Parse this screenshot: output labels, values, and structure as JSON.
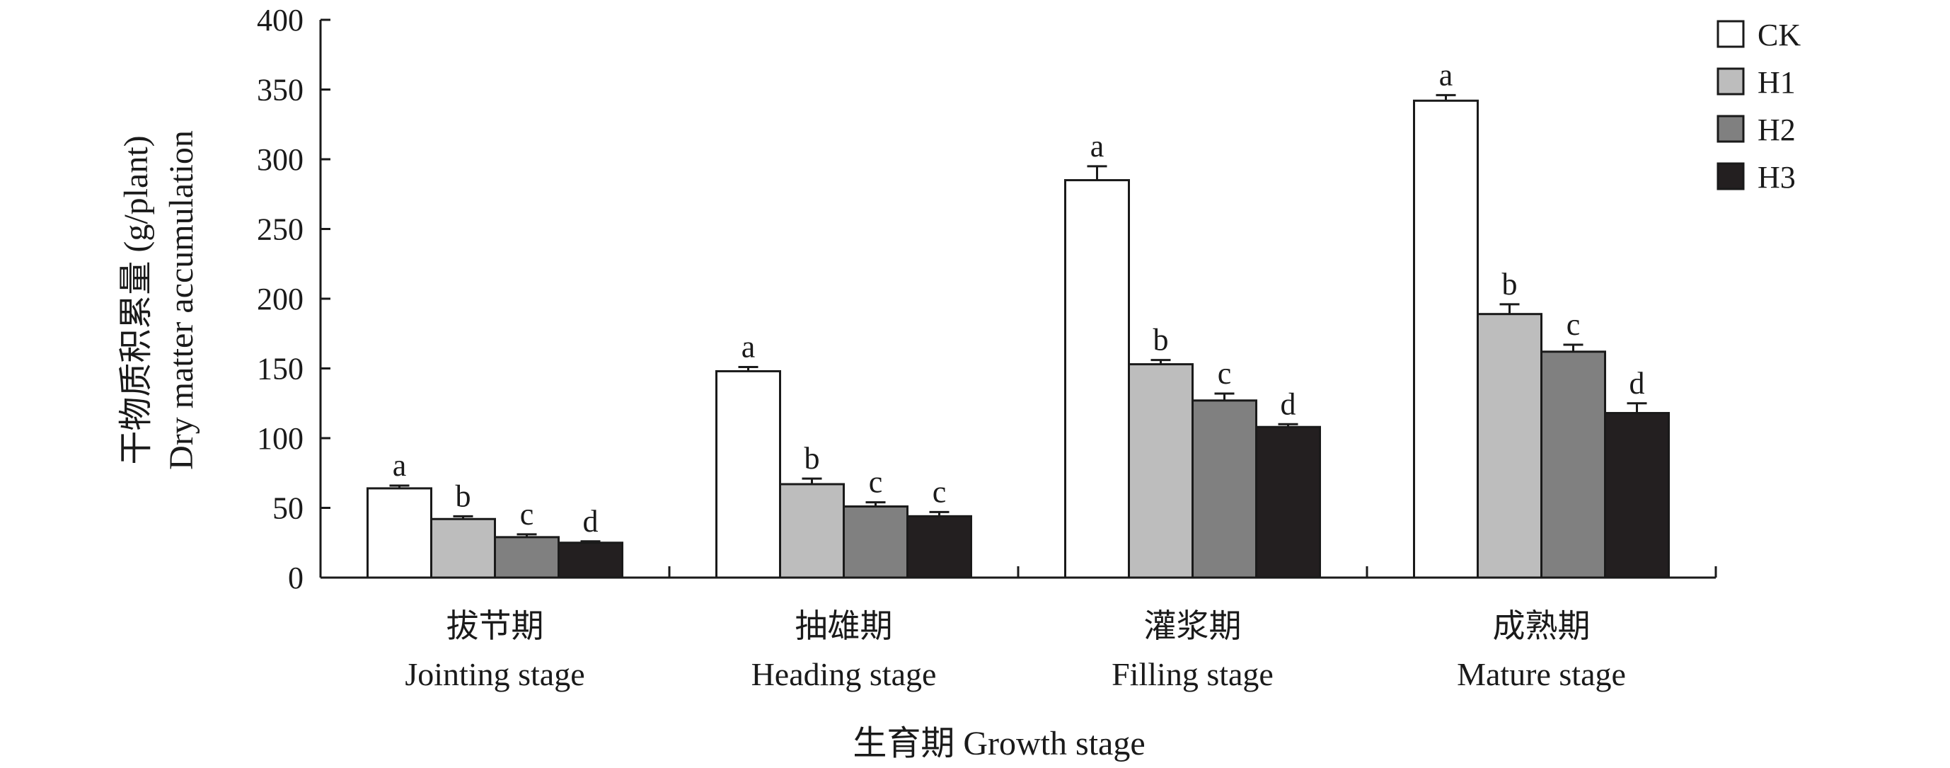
{
  "chart_data": {
    "type": "bar",
    "title": "",
    "xlabel": "生育期 Growth stage",
    "ylabel_cn": "干物质积累量 (g/plant)",
    "ylabel_en": "Dry matter accumulation",
    "ylim": [
      0,
      400
    ],
    "yticks": [
      0,
      50,
      100,
      150,
      200,
      250,
      300,
      350,
      400
    ],
    "categories": [
      {
        "cn": "拔节期",
        "en": "Jointing stage"
      },
      {
        "cn": "抽雄期",
        "en": "Heading stage"
      },
      {
        "cn": "灌浆期",
        "en": "Filling stage"
      },
      {
        "cn": "成熟期",
        "en": "Mature stage"
      }
    ],
    "series": [
      {
        "name": "CK",
        "color": "#ffffff",
        "values": [
          64,
          148,
          285,
          342
        ],
        "errors": [
          2,
          3,
          10,
          4
        ],
        "letters": [
          "a",
          "a",
          "a",
          "a"
        ]
      },
      {
        "name": "H1",
        "color": "#bdbdbd",
        "values": [
          42,
          67,
          153,
          189
        ],
        "errors": [
          2,
          4,
          3,
          7
        ],
        "letters": [
          "b",
          "b",
          "b",
          "b"
        ]
      },
      {
        "name": "H2",
        "color": "#808080",
        "values": [
          29,
          51,
          127,
          162
        ],
        "errors": [
          2,
          3,
          5,
          5
        ],
        "letters": [
          "c",
          "c",
          "c",
          "c"
        ]
      },
      {
        "name": "H3",
        "color": "#231f20",
        "values": [
          25,
          44,
          108,
          118
        ],
        "errors": [
          1,
          3,
          2,
          7
        ],
        "letters": [
          "d",
          "c",
          "d",
          "d"
        ]
      }
    ],
    "legend_position": "top-right",
    "grid": false
  }
}
